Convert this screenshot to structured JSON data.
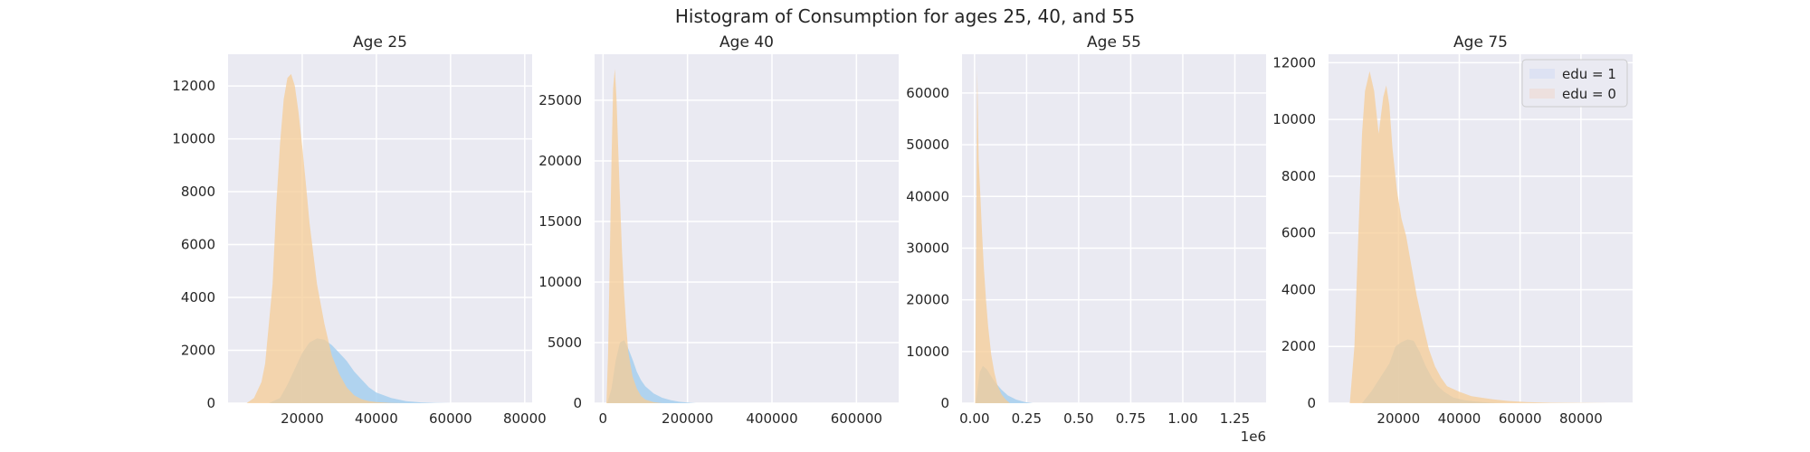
{
  "figure": {
    "title": "Histogram of Consumption for ages 25, 40, and 55"
  },
  "colors": {
    "background": "#eaeaf2",
    "grid": "#ffffff",
    "edu1": "#a6cfee",
    "edu0": "#f5cc96",
    "overlap": "#cfcca6",
    "legend_edu1": "#dde2f3",
    "legend_edu0": "#ede0de"
  },
  "chart_data": [
    {
      "type": "area",
      "title": "Age 25",
      "xlim": [
        0,
        82000
      ],
      "ylim": [
        0,
        13200
      ],
      "xticks": [
        20000,
        40000,
        60000,
        80000
      ],
      "xticklabels": [
        "20000",
        "40000",
        "60000",
        "80000"
      ],
      "yticks": [
        0,
        2000,
        4000,
        6000,
        8000,
        10000,
        12000
      ],
      "yticklabels": [
        "0",
        "2000",
        "4000",
        "6000",
        "8000",
        "10000",
        "12000"
      ],
      "offset_label": "",
      "series": [
        {
          "name": "edu = 1",
          "x": [
            11000,
            14000,
            16000,
            18000,
            20000,
            22000,
            24000,
            26000,
            28000,
            30000,
            32000,
            34000,
            36000,
            38000,
            40000,
            44000,
            48000,
            52000,
            56000,
            60000
          ],
          "y": [
            0,
            200,
            700,
            1300,
            1900,
            2300,
            2450,
            2400,
            2200,
            1900,
            1600,
            1200,
            900,
            600,
            400,
            200,
            80,
            30,
            10,
            0
          ]
        },
        {
          "name": "edu = 0",
          "x": [
            5000,
            7000,
            9000,
            10000,
            12000,
            13000,
            14000,
            15000,
            16000,
            17000,
            18000,
            19000,
            20000,
            21000,
            22000,
            24000,
            26000,
            28000,
            30000,
            32000,
            34000,
            36000,
            38000,
            40000,
            44000,
            48000
          ],
          "y": [
            0,
            200,
            800,
            1500,
            4500,
            7500,
            9800,
            11500,
            12300,
            12450,
            12000,
            11000,
            9700,
            8300,
            6800,
            4500,
            3000,
            1800,
            1100,
            600,
            300,
            150,
            80,
            40,
            10,
            0
          ]
        }
      ]
    },
    {
      "type": "area",
      "title": "Age 40",
      "xlim": [
        -20000,
        700000
      ],
      "ylim": [
        0,
        28800
      ],
      "xticks": [
        0,
        200000,
        400000,
        600000
      ],
      "xticklabels": [
        "0",
        "200000",
        "400000",
        "600000"
      ],
      "yticks": [
        0,
        5000,
        10000,
        15000,
        20000,
        25000
      ],
      "yticklabels": [
        "0",
        "5000",
        "10000",
        "15000",
        "20000",
        "25000"
      ],
      "offset_label": "",
      "series": [
        {
          "name": "edu = 1",
          "x": [
            10000,
            20000,
            30000,
            40000,
            50000,
            60000,
            70000,
            80000,
            90000,
            100000,
            120000,
            140000,
            160000,
            180000,
            200000,
            220000
          ],
          "y": [
            0,
            1200,
            3500,
            5000,
            5200,
            4500,
            3600,
            2600,
            1900,
            1400,
            800,
            450,
            250,
            120,
            50,
            0
          ]
        },
        {
          "name": "edu = 0",
          "x": [
            8000,
            12000,
            16000,
            20000,
            24000,
            28000,
            32000,
            36000,
            40000,
            45000,
            50000,
            55000,
            60000,
            70000,
            80000,
            90000,
            100000,
            120000,
            140000
          ],
          "y": [
            0,
            4000,
            12000,
            20000,
            26000,
            27600,
            25000,
            21000,
            17000,
            12500,
            9000,
            6300,
            4200,
            2200,
            1200,
            600,
            300,
            80,
            0
          ]
        }
      ]
    },
    {
      "type": "area",
      "title": "Age 55",
      "xlim": [
        -60000,
        1400000
      ],
      "ylim": [
        0,
        67500
      ],
      "xticks": [
        0,
        250000,
        500000,
        750000,
        1000000,
        1250000
      ],
      "xticklabels": [
        "0.00",
        "0.25",
        "0.50",
        "0.75",
        "1.00",
        "1.25"
      ],
      "yticks": [
        0,
        10000,
        20000,
        30000,
        40000,
        50000,
        60000
      ],
      "yticklabels": [
        "0",
        "10000",
        "20000",
        "30000",
        "40000",
        "50000",
        "60000"
      ],
      "offset_label": "1e6",
      "series": [
        {
          "name": "edu = 1",
          "x": [
            5000,
            15000,
            25000,
            40000,
            60000,
            80000,
            100000,
            130000,
            160000,
            200000,
            240000,
            280000
          ],
          "y": [
            0,
            3000,
            6000,
            7200,
            6500,
            5200,
            4000,
            2600,
            1500,
            700,
            250,
            0
          ]
        },
        {
          "name": "edu = 0",
          "x": [
            3000,
            8000,
            13000,
            20000,
            28000,
            36000,
            45000,
            55000,
            65000,
            80000,
            95000,
            110000,
            130000,
            150000,
            170000
          ],
          "y": [
            0,
            30000,
            64500,
            47000,
            40000,
            33000,
            26000,
            20000,
            15000,
            9500,
            6000,
            3500,
            1700,
            700,
            0
          ]
        }
      ]
    },
    {
      "type": "area",
      "title": "Age 75",
      "xlim": [
        -3000,
        97000
      ],
      "ylim": [
        0,
        12300
      ],
      "xticks": [
        20000,
        40000,
        60000,
        80000
      ],
      "xticklabels": [
        "20000",
        "40000",
        "60000",
        "80000"
      ],
      "yticks": [
        0,
        2000,
        4000,
        6000,
        8000,
        10000,
        12000
      ],
      "yticklabels": [
        "0",
        "2000",
        "4000",
        "6000",
        "8000",
        "10000",
        "12000"
      ],
      "offset_label": "",
      "legend": {
        "loc": "upper right",
        "entries": [
          "edu = 1",
          "edu = 0"
        ]
      },
      "series": [
        {
          "name": "edu = 1",
          "x": [
            8000,
            11000,
            14000,
            17000,
            19000,
            21000,
            23000,
            25000,
            27000,
            29000,
            31000,
            33000,
            35000,
            38000,
            42000,
            46000,
            50000,
            55000
          ],
          "y": [
            0,
            400,
            900,
            1400,
            2000,
            2150,
            2250,
            2200,
            1800,
            1300,
            900,
            600,
            400,
            200,
            100,
            50,
            20,
            0
          ]
        },
        {
          "name": "edu = 0",
          "x": [
            4000,
            5500,
            7000,
            8000,
            9000,
            10500,
            12000,
            13500,
            15000,
            16000,
            17000,
            18000,
            19500,
            21000,
            22500,
            24000,
            26000,
            28000,
            30000,
            32000,
            34000,
            36000,
            40000,
            44000,
            50000,
            56000,
            62000,
            70000,
            90000
          ],
          "y": [
            0,
            2000,
            6500,
            9500,
            11000,
            11700,
            11000,
            9500,
            10800,
            11200,
            10500,
            9000,
            7500,
            6500,
            5900,
            5000,
            3800,
            2800,
            1900,
            1300,
            900,
            600,
            400,
            250,
            150,
            80,
            40,
            15,
            0
          ]
        }
      ]
    }
  ]
}
